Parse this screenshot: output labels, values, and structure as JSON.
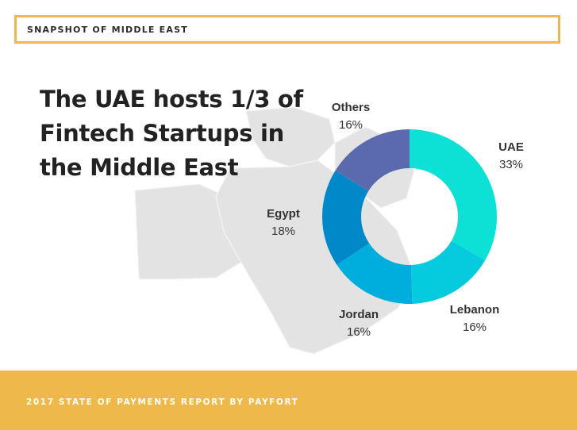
{
  "header": {
    "title": "SNAPSHOT OF MIDDLE EAST"
  },
  "headline": "The UAE hosts 1/3 of Fintech Startups in the Middle East",
  "footer": {
    "text": "2017 STATE OF PAYMENTS REPORT BY PAYFORT"
  },
  "colors": {
    "accent": "#efb84a",
    "map": "#e3e3e3",
    "text": "#222222"
  },
  "chart_data": {
    "type": "pie",
    "style": "donut",
    "title": "",
    "legend": "none",
    "unit": "%",
    "slices": [
      {
        "label": "UAE",
        "value": 33,
        "display": "33%",
        "color": "#0de0d5"
      },
      {
        "label": "Lebanon",
        "value": 16,
        "display": "16%",
        "color": "#06cbdf"
      },
      {
        "label": "Jordan",
        "value": 16,
        "display": "16%",
        "color": "#00aedd"
      },
      {
        "label": "Egypt",
        "value": 18,
        "display": "18%",
        "color": "#0088c8"
      },
      {
        "label": "Others",
        "value": 16,
        "display": "16%",
        "color": "#5b6aaf"
      }
    ]
  }
}
